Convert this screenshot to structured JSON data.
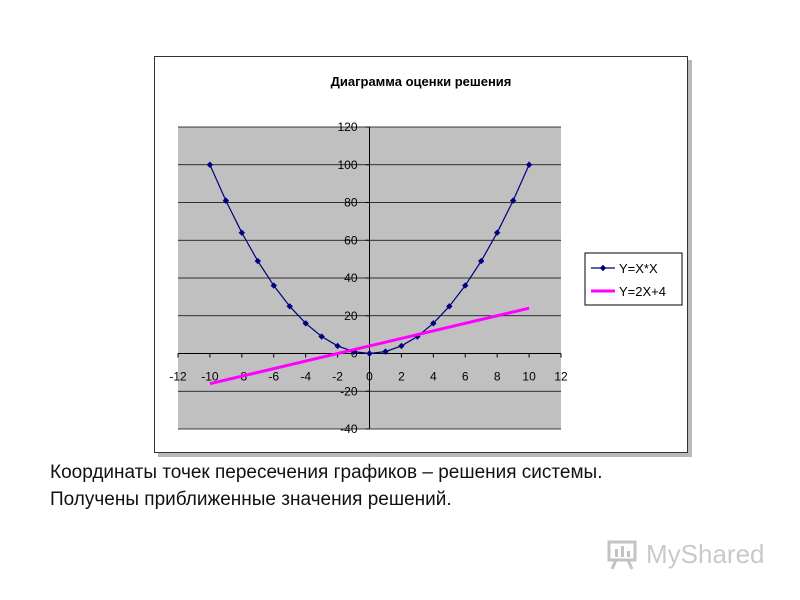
{
  "chart_data": {
    "type": "line",
    "title": "Диаграмма оценки решения",
    "xlabel": "",
    "ylabel": "",
    "xlim": [
      -12,
      12
    ],
    "ylim": [
      -40,
      120
    ],
    "xticks": [
      "-12",
      "-10",
      "-8",
      "-6",
      "-4",
      "-2",
      "0",
      "2",
      "4",
      "6",
      "8",
      "10",
      "12"
    ],
    "yticks": [
      "120",
      "100",
      "80",
      "60",
      "40",
      "20",
      "0",
      "-20",
      "-40"
    ],
    "grid": true,
    "legend_position": "right",
    "series": [
      {
        "name": "Y=X*X",
        "color": "#000080",
        "marker": "diamond",
        "x": [
          -10,
          -9,
          -8,
          -7,
          -6,
          -5,
          -4,
          -3,
          -2,
          -1,
          0,
          1,
          2,
          3,
          4,
          5,
          6,
          7,
          8,
          9,
          10
        ],
        "y": [
          100,
          81,
          64,
          49,
          36,
          25,
          16,
          9,
          4,
          1,
          0,
          1,
          4,
          9,
          16,
          25,
          36,
          49,
          64,
          81,
          100
        ]
      },
      {
        "name": "Y=2X+4",
        "color": "#ff00ff",
        "marker": "none",
        "x": [
          -10,
          10
        ],
        "y": [
          -16,
          24
        ]
      }
    ]
  },
  "caption": {
    "line1": "Координаты точек пересечения графиков – решения системы.",
    "line2": "Получены приближенные значения решений."
  },
  "watermark": {
    "text": "MyShared"
  },
  "colors": {
    "plot_background": "#c0c0c0",
    "gridline": "#000000"
  }
}
